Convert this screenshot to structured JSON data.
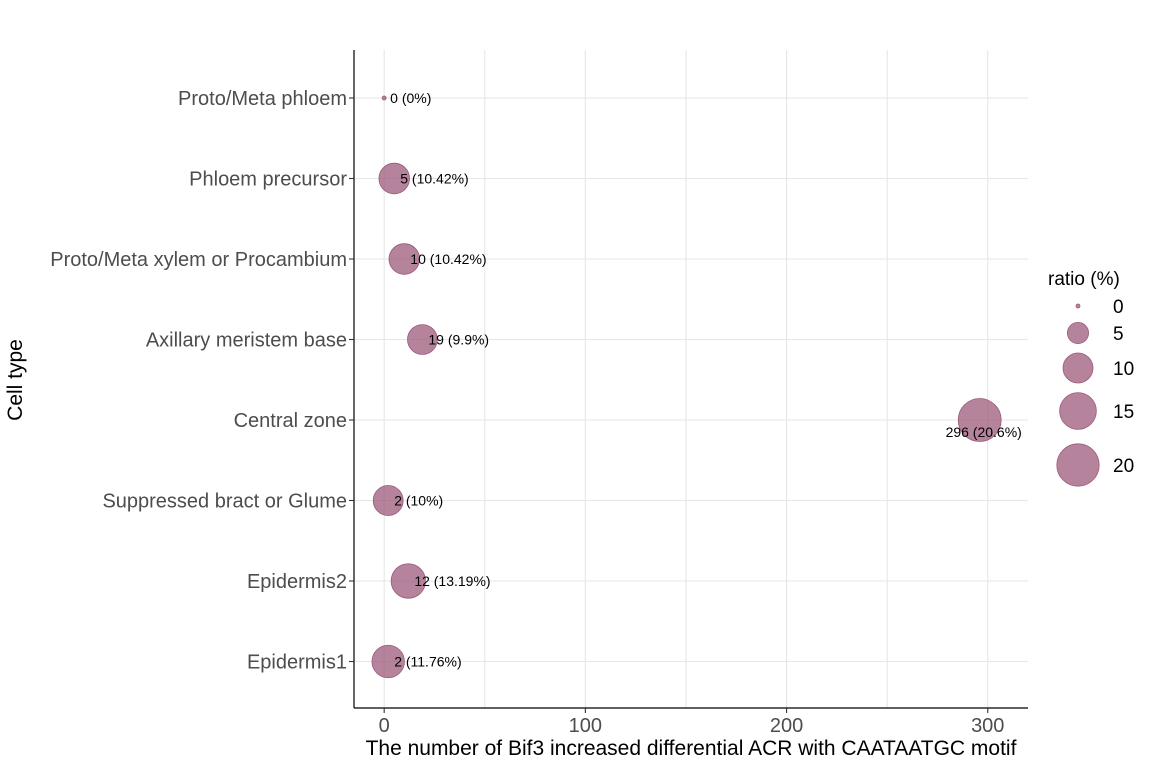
{
  "chart_data": {
    "type": "scatter",
    "title": "",
    "xlabel": "The number of Bif3 increased differential ACR with CAATAATGC motif",
    "ylabel": "Cell type",
    "xlim": [
      -15,
      320
    ],
    "x_ticks": [
      0,
      100,
      200,
      300
    ],
    "grid": true,
    "legend_title": "ratio (%)",
    "legend_position": "right",
    "legend_values": [
      0,
      5,
      10,
      15,
      20
    ],
    "bubble_color": "#9c5a7a",
    "points": [
      {
        "category": "Proto/Meta phloem",
        "x": 0,
        "ratio": 0,
        "label": "0 (0%)"
      },
      {
        "category": "Phloem precursor",
        "x": 5,
        "ratio": 10.42,
        "label": "5 (10.42%)"
      },
      {
        "category": "Proto/Meta xylem or Procambium",
        "x": 10,
        "ratio": 10.42,
        "label": "10 (10.42%)"
      },
      {
        "category": "Axillary meristem base",
        "x": 19,
        "ratio": 9.9,
        "label": "19 (9.9%)"
      },
      {
        "category": "Central zone",
        "x": 296,
        "ratio": 20.6,
        "label": "296 (20.6%)"
      },
      {
        "category": "Suppressed bract or Glume",
        "x": 2,
        "ratio": 10,
        "label": "2 (10%)"
      },
      {
        "category": "Epidermis2",
        "x": 12,
        "ratio": 13.19,
        "label": "12 (13.19%)"
      },
      {
        "category": "Epidermis1",
        "x": 2,
        "ratio": 11.76,
        "label": "2 (11.76%)"
      }
    ]
  }
}
